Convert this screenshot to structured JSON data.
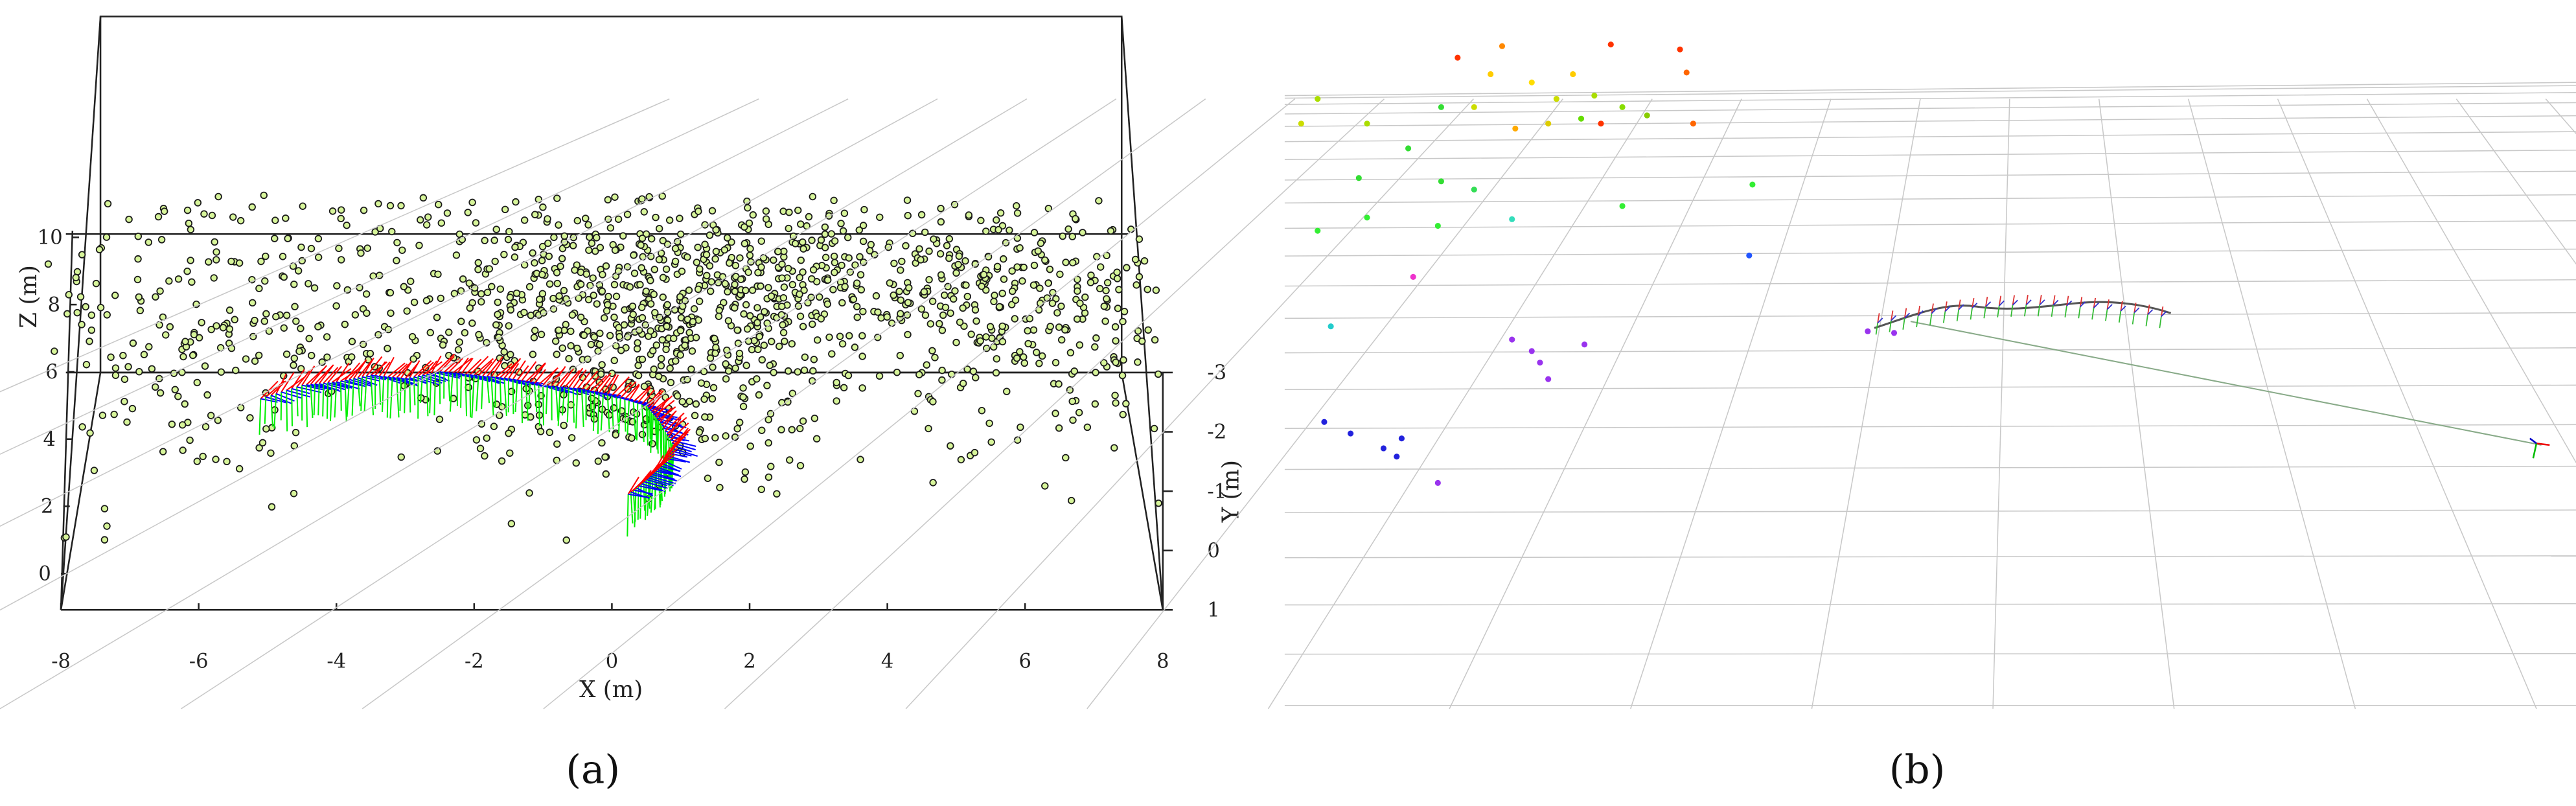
{
  "figure": {
    "panels": [
      {
        "caption": "(a)"
      },
      {
        "caption": "(b)"
      }
    ]
  },
  "chart_data": [
    {
      "type": "scatter",
      "title": "",
      "xlabel": "X (m)",
      "ylabel": "Y (m)",
      "zlabel": "Z (m)",
      "xlim": [
        -8,
        8
      ],
      "ylim": [
        -3,
        1
      ],
      "zlim": [
        0,
        10
      ],
      "x_ticks": [
        "-8",
        "-6",
        "-4",
        "-2",
        "0",
        "2",
        "4",
        "6",
        "8"
      ],
      "y_ticks": [
        "-3",
        "-2",
        "-1",
        "0",
        "1"
      ],
      "z_ticks": [
        "0",
        "2",
        "4",
        "6",
        "8",
        "10"
      ],
      "series": [
        {
          "marker": "circle",
          "color": "#d7f59a",
          "edge": "#1a1a1a"
        },
        {
          "marker": "arrow",
          "color": "#ff0000"
        },
        {
          "marker": "arrow",
          "color": "#00ee00"
        },
        {
          "marker": "arrow",
          "color": "#0000ff"
        }
      ],
      "cloud_clusters": [
        {
          "cx": 0.5,
          "cz": 7.5,
          "sx": 1.6,
          "sz": 2.0,
          "n": 520
        },
        {
          "cx": 4.0,
          "cz": 8.6,
          "sx": 2.6,
          "sz": 1.2,
          "n": 420
        },
        {
          "cx": -2.5,
          "cz": 9.5,
          "sx": 3.0,
          "sz": 2.0,
          "n": 260
        },
        {
          "cx": 6.5,
          "cz": 7.0,
          "sx": 1.2,
          "sz": 2.2,
          "n": 170
        },
        {
          "cx": -6.5,
          "cz": 7.0,
          "sx": 1.2,
          "sz": 2.5,
          "n": 150
        },
        {
          "cx": 1.0,
          "cz": 5.0,
          "sx": 1.5,
          "sz": 1.2,
          "n": 110
        },
        {
          "cx": -3.0,
          "cz": 7.0,
          "sx": 1.5,
          "sz": 1.0,
          "n": 90
        }
      ],
      "trajectory": [
        {
          "x": -5.1,
          "z": 5.2
        },
        {
          "x": -4.5,
          "z": 5.6
        },
        {
          "x": -4.0,
          "z": 5.7
        },
        {
          "x": -3.5,
          "z": 5.9
        },
        {
          "x": -3.0,
          "z": 5.8
        },
        {
          "x": -2.5,
          "z": 6.0
        },
        {
          "x": -2.0,
          "z": 5.9
        },
        {
          "x": -1.5,
          "z": 5.8
        },
        {
          "x": -1.0,
          "z": 5.6
        },
        {
          "x": -0.5,
          "z": 5.5
        },
        {
          "x": 0.0,
          "z": 5.3
        },
        {
          "x": 0.5,
          "z": 5.0
        },
        {
          "x": 0.7,
          "z": 4.5
        },
        {
          "x": 0.9,
          "z": 3.8
        },
        {
          "x": 0.7,
          "z": 3.2
        },
        {
          "x": 0.5,
          "z": 2.8
        },
        {
          "x": 0.2,
          "z": 2.3
        }
      ]
    },
    {
      "type": "scatter",
      "title": "",
      "points": [
        {
          "x": 885,
          "y": 35,
          "color": "#ff3300"
        },
        {
          "x": 912,
          "y": 28,
          "color": "#ff8800"
        },
        {
          "x": 978,
          "y": 27,
          "color": "#ff3300"
        },
        {
          "x": 1020,
          "y": 30,
          "color": "#ff3300"
        },
        {
          "x": 1024,
          "y": 44,
          "color": "#ff6600"
        },
        {
          "x": 905,
          "y": 45,
          "color": "#ffcc00"
        },
        {
          "x": 930,
          "y": 50,
          "color": "#ffdd00"
        },
        {
          "x": 955,
          "y": 45,
          "color": "#ffcc00"
        },
        {
          "x": 945,
          "y": 60,
          "color": "#ccdd00"
        },
        {
          "x": 968,
          "y": 58,
          "color": "#aadd00"
        },
        {
          "x": 985,
          "y": 65,
          "color": "#88dd00"
        },
        {
          "x": 960,
          "y": 72,
          "color": "#66dd00"
        },
        {
          "x": 1000,
          "y": 70,
          "color": "#88cc00"
        },
        {
          "x": 1028,
          "y": 75,
          "color": "#ff6600"
        },
        {
          "x": 940,
          "y": 75,
          "color": "#ddcc00"
        },
        {
          "x": 972,
          "y": 75,
          "color": "#ff3300"
        },
        {
          "x": 895,
          "y": 65,
          "color": "#ccdd00"
        },
        {
          "x": 920,
          "y": 78,
          "color": "#ffaa00"
        },
        {
          "x": 800,
          "y": 60,
          "color": "#aadd00"
        },
        {
          "x": 830,
          "y": 75,
          "color": "#aadd00"
        },
        {
          "x": 790,
          "y": 75,
          "color": "#ccdd00"
        },
        {
          "x": 875,
          "y": 65,
          "color": "#33dd33"
        },
        {
          "x": 855,
          "y": 90,
          "color": "#33dd33"
        },
        {
          "x": 825,
          "y": 108,
          "color": "#33dd33"
        },
        {
          "x": 875,
          "y": 110,
          "color": "#33dd33"
        },
        {
          "x": 895,
          "y": 115,
          "color": "#33dd55"
        },
        {
          "x": 830,
          "y": 132,
          "color": "#33ee33"
        },
        {
          "x": 800,
          "y": 140,
          "color": "#33ee33"
        },
        {
          "x": 873,
          "y": 137,
          "color": "#33ee33"
        },
        {
          "x": 918,
          "y": 133,
          "color": "#33ddbb"
        },
        {
          "x": 985,
          "y": 125,
          "color": "#33ee33"
        },
        {
          "x": 1064,
          "y": 112,
          "color": "#33ee33"
        },
        {
          "x": 1062,
          "y": 155,
          "color": "#2255ff"
        },
        {
          "x": 858,
          "y": 168,
          "color": "#ee33cc"
        },
        {
          "x": 808,
          "y": 198,
          "color": "#22cccc"
        },
        {
          "x": 918,
          "y": 206,
          "color": "#9933ee"
        },
        {
          "x": 930,
          "y": 213,
          "color": "#9933ee"
        },
        {
          "x": 962,
          "y": 209,
          "color": "#9933ee"
        },
        {
          "x": 935,
          "y": 220,
          "color": "#9933ee"
        },
        {
          "x": 940,
          "y": 230,
          "color": "#9933ee"
        },
        {
          "x": 804,
          "y": 256,
          "color": "#2222dd"
        },
        {
          "x": 820,
          "y": 263,
          "color": "#2222dd"
        },
        {
          "x": 851,
          "y": 266,
          "color": "#2222dd"
        },
        {
          "x": 840,
          "y": 272,
          "color": "#2222dd"
        },
        {
          "x": 848,
          "y": 277,
          "color": "#2222dd"
        },
        {
          "x": 873,
          "y": 293,
          "color": "#9933ee"
        },
        {
          "x": 1134,
          "y": 201,
          "color": "#9933ee"
        },
        {
          "x": 1150,
          "y": 202,
          "color": "#9933ee"
        }
      ]
    }
  ]
}
